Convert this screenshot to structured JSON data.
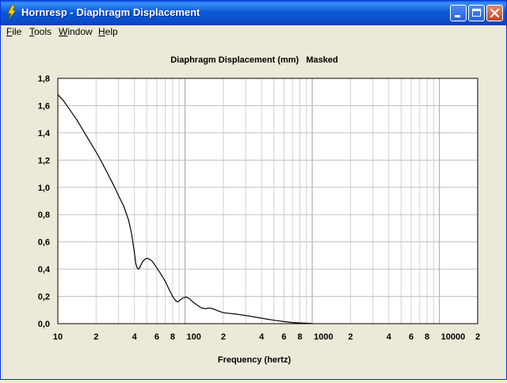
{
  "window": {
    "title": "Hornresp - Diaphragm Displacement"
  },
  "menu": {
    "items": [
      {
        "label": "File",
        "accel": "F",
        "rest": "ile"
      },
      {
        "label": "Tools",
        "accel": "T",
        "rest": "ools"
      },
      {
        "label": "Window",
        "accel": "W",
        "rest": "indow"
      },
      {
        "label": "Help",
        "accel": "H",
        "rest": "elp"
      }
    ]
  },
  "chart_data": {
    "type": "line",
    "title": "Diaphragm Displacement (mm)   Masked",
    "xlabel": "Frequency (hertz)",
    "ylabel": "",
    "x_scale": "log",
    "xlim": [
      10,
      20000
    ],
    "ylim": [
      0,
      1.8
    ],
    "grid": true,
    "x_ticks": [
      {
        "value": 10,
        "label": "10"
      },
      {
        "value": 20,
        "label": "2"
      },
      {
        "value": 40,
        "label": "4"
      },
      {
        "value": 60,
        "label": "6"
      },
      {
        "value": 80,
        "label": "8"
      },
      {
        "value": 100,
        "label": "100"
      },
      {
        "value": 200,
        "label": "2"
      },
      {
        "value": 400,
        "label": "4"
      },
      {
        "value": 600,
        "label": "6"
      },
      {
        "value": 800,
        "label": "8"
      },
      {
        "value": 1000,
        "label": "1000"
      },
      {
        "value": 2000,
        "label": "2"
      },
      {
        "value": 4000,
        "label": "4"
      },
      {
        "value": 6000,
        "label": "6"
      },
      {
        "value": 8000,
        "label": "8"
      },
      {
        "value": 10000,
        "label": "10000"
      },
      {
        "value": 20000,
        "label": "2"
      }
    ],
    "y_ticks": [
      {
        "value": 0,
        "label": "0,0"
      },
      {
        "value": 0.2,
        "label": "0,2"
      },
      {
        "value": 0.4,
        "label": "0,4"
      },
      {
        "value": 0.6,
        "label": "0,6"
      },
      {
        "value": 0.8,
        "label": "0,8"
      },
      {
        "value": 1.0,
        "label": "1,0"
      },
      {
        "value": 1.2,
        "label": "1,2"
      },
      {
        "value": 1.4,
        "label": "1,4"
      },
      {
        "value": 1.6,
        "label": "1,6"
      },
      {
        "value": 1.8,
        "label": "1,8"
      }
    ],
    "series": [
      {
        "color": "#000000",
        "points": [
          [
            10,
            1.68
          ],
          [
            11,
            1.64
          ],
          [
            12,
            1.59
          ],
          [
            14,
            1.5
          ],
          [
            16,
            1.41
          ],
          [
            18,
            1.33
          ],
          [
            20,
            1.26
          ],
          [
            22,
            1.19
          ],
          [
            25,
            1.09
          ],
          [
            28,
            1.0
          ],
          [
            30,
            0.94
          ],
          [
            33,
            0.86
          ],
          [
            36,
            0.76
          ],
          [
            38,
            0.66
          ],
          [
            40,
            0.52
          ],
          [
            41,
            0.44
          ],
          [
            42,
            0.41
          ],
          [
            43,
            0.4
          ],
          [
            44,
            0.41
          ],
          [
            46,
            0.45
          ],
          [
            48,
            0.47
          ],
          [
            50,
            0.48
          ],
          [
            52,
            0.475
          ],
          [
            55,
            0.46
          ],
          [
            60,
            0.41
          ],
          [
            65,
            0.36
          ],
          [
            70,
            0.31
          ],
          [
            75,
            0.25
          ],
          [
            80,
            0.2
          ],
          [
            85,
            0.165
          ],
          [
            88,
            0.16
          ],
          [
            92,
            0.175
          ],
          [
            97,
            0.19
          ],
          [
            102,
            0.195
          ],
          [
            108,
            0.185
          ],
          [
            115,
            0.16
          ],
          [
            125,
            0.135
          ],
          [
            135,
            0.115
          ],
          [
            145,
            0.11
          ],
          [
            155,
            0.115
          ],
          [
            165,
            0.11
          ],
          [
            180,
            0.095
          ],
          [
            200,
            0.08
          ],
          [
            250,
            0.07
          ],
          [
            300,
            0.06
          ],
          [
            400,
            0.04
          ],
          [
            500,
            0.025
          ],
          [
            600,
            0.015
          ],
          [
            700,
            0.008
          ],
          [
            800,
            0.005
          ],
          [
            900,
            0.003
          ],
          [
            1000,
            0.001
          ]
        ]
      }
    ]
  }
}
